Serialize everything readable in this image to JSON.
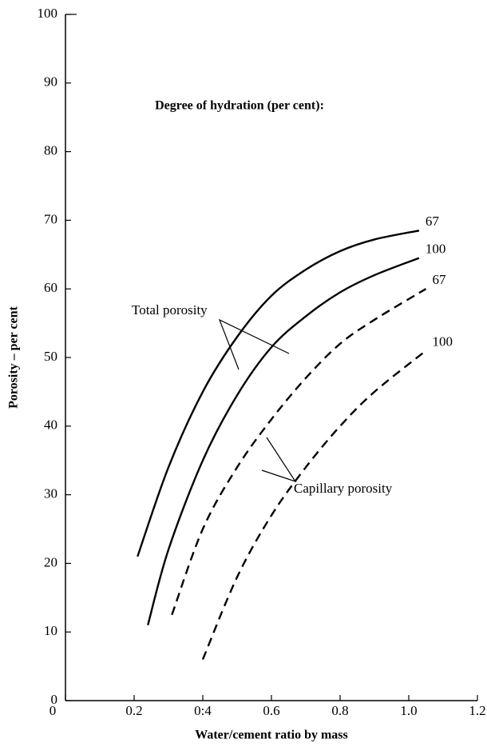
{
  "chart_data": {
    "type": "line",
    "subtitle": "Degree of hydration (per cent):",
    "x_label": "Water/cement ratio by mass",
    "y_label": "Porosity – per cent",
    "annotations": [
      "Total porosity",
      "Capillary porosity"
    ],
    "xlim": [
      0,
      1.2
    ],
    "xticks": [
      0,
      0.2,
      {
        "value": 0.4,
        "label": "0:4"
      },
      0.6,
      0.8,
      {
        "value": 1.0,
        "label": "1.0"
      },
      1.2
    ],
    "ylim": [
      0,
      100
    ],
    "yticks": [
      0,
      10,
      20,
      30,
      40,
      50,
      60,
      70,
      80,
      90,
      100
    ],
    "series": [
      {
        "name": "67",
        "color": "#000000",
        "style": "solid",
        "x": [
          0.21,
          0.3,
          0.4,
          0.5,
          0.6,
          0.7,
          0.8,
          0.9,
          1.03
        ],
        "values": [
          21,
          34,
          45,
          53,
          59,
          62.8,
          65.5,
          67.2,
          68.5
        ]
      },
      {
        "name": "100",
        "color": "#000000",
        "style": "solid",
        "x": [
          0.24,
          0.3,
          0.4,
          0.5,
          0.6,
          0.7,
          0.8,
          0.9,
          1.03
        ],
        "values": [
          11,
          22,
          35,
          44.5,
          51.5,
          56,
          59.5,
          62,
          64.5
        ]
      },
      {
        "name": "67",
        "color": "#000000",
        "style": "dashed",
        "x": [
          0.31,
          0.4,
          0.5,
          0.6,
          0.7,
          0.8,
          0.9,
          1.05
        ],
        "values": [
          12.5,
          25,
          34,
          41,
          47,
          52,
          55.5,
          60
        ]
      },
      {
        "name": "100",
        "color": "#000000",
        "style": "dashed",
        "x": [
          0.4,
          0.5,
          0.6,
          0.7,
          0.8,
          0.9,
          1.05
        ],
        "values": [
          6,
          18,
          27,
          34,
          40,
          45,
          51
        ]
      }
    ]
  }
}
